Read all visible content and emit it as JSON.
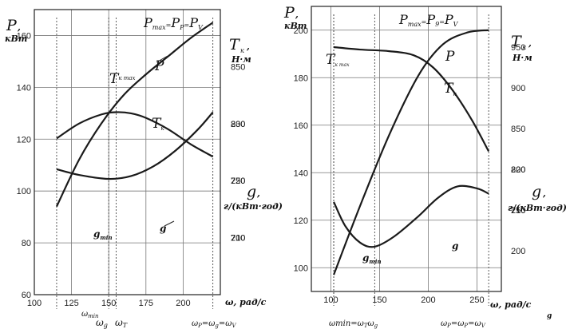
{
  "chart_data": [
    {
      "type": "line",
      "xlim": [
        100,
        225
      ],
      "x_ticks": [
        "100",
        "125",
        "150",
        "175",
        "200"
      ],
      "x_axis_label": "ω, рад/с",
      "x_marks": [
        "ω",
        "min",
        "ω",
        "g",
        "ω",
        "T",
        "ω",
        "P",
        "=ω",
        "g",
        "=",
        "ω",
        "V"
      ],
      "left_axis": {
        "label": "P",
        "comma": ",",
        "unit": "кВт",
        "ylim": [
          60,
          170
        ],
        "ticks": [
          "60",
          "80",
          "100",
          "120",
          "140",
          "160"
        ]
      },
      "torque_axis": {
        "label": "T",
        "sub": "к",
        "comma": ",",
        "unit": "Н·м",
        "range": [
          650,
          900
        ],
        "ticks": [
          "750",
          "800",
          "850",
          "700"
        ]
      },
      "fuel_axis": {
        "label": "g",
        "comma": ",",
        "unit": "г/(кВт·год)",
        "range": [
          200,
          250
        ],
        "ticks": [
          "210",
          "220",
          "230"
        ]
      },
      "annotations": [
        "P",
        "max",
        "=",
        "P",
        "P",
        "=",
        "P",
        "V",
        "T",
        "к max",
        "T",
        "к",
        "P",
        "g",
        "g",
        "min"
      ],
      "series": [
        {
          "name": "P",
          "axis": "left",
          "x": [
            115,
            130,
            145,
            160,
            175,
            190,
            205,
            220
          ],
          "y": [
            94,
            112,
            126,
            137,
            145,
            152,
            159,
            165
          ]
        },
        {
          "name": "T к",
          "axis": "torque",
          "x": [
            115,
            130,
            145,
            155,
            165,
            175,
            190,
            205,
            220
          ],
          "y": [
            787,
            800,
            808,
            810,
            809,
            805,
            795,
            782,
            771
          ]
        },
        {
          "name": "g",
          "axis": "fuel",
          "x": [
            115,
            130,
            150,
            165,
            180,
            195,
            210,
            220
          ],
          "y": [
            222,
            221,
            220.3,
            220.8,
            222.5,
            225.3,
            229,
            232
          ]
        }
      ]
    },
    {
      "type": "line",
      "xlim": [
        80,
        275
      ],
      "x_ticks": [
        "100",
        "150",
        "200",
        "250"
      ],
      "x_axis_label": "ω, рад/с",
      "x_marks": [
        "ωmin=",
        "ω",
        "T",
        "ω",
        "g",
        "ω",
        "P",
        "=ω",
        "P",
        "=",
        "ω",
        "V"
      ],
      "left_axis": {
        "label": "P",
        "comma": ",",
        "unit": "кВт",
        "ylim": [
          90,
          210
        ],
        "ticks": [
          "100",
          "120",
          "140",
          "160",
          "180",
          "200"
        ]
      },
      "torque_axis": {
        "label": "T",
        "sub": "к",
        "comma": ",",
        "unit": "Н·м",
        "range": [
          650,
          1000
        ],
        "ticks": [
          "950",
          "900",
          "850",
          "800",
          "750"
        ]
      },
      "fuel_axis": {
        "label": "g",
        "comma": ",",
        "unit": "г/(кВт·год)",
        "range": [
          190,
          260
        ],
        "ticks": [
          "220",
          "210",
          "200"
        ]
      },
      "annotations": [
        "P",
        "max",
        "=",
        "P",
        "9",
        "=",
        "P",
        "V",
        "T",
        "к max",
        "T",
        "к",
        "P",
        "g",
        "g",
        "min"
      ],
      "series": [
        {
          "name": "P",
          "axis": "left",
          "x": [
            103,
            130,
            160,
            190,
            215,
            240,
            262
          ],
          "y": [
            97,
            126,
            156,
            181,
            194,
            199,
            200
          ]
        },
        {
          "name": "T к",
          "axis": "torque",
          "x": [
            103,
            130,
            160,
            185,
            205,
            225,
            245,
            262
          ],
          "y": [
            950,
            947,
            945,
            940,
            925,
            897,
            860,
            822
          ]
        },
        {
          "name": "g",
          "axis": "fuel",
          "x": [
            103,
            115,
            130,
            145,
            165,
            190,
            210,
            230,
            250,
            262
          ],
          "y": [
            212,
            206,
            202,
            201,
            203.5,
            208.5,
            213,
            215.8,
            215.3,
            214
          ]
        }
      ]
    }
  ],
  "corner_mark": "g"
}
